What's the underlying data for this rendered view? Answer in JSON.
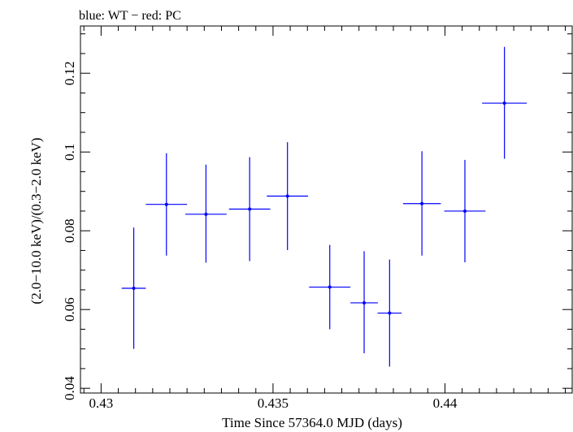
{
  "chart_data": {
    "type": "scatter",
    "title": "blue: WT − red: PC",
    "xlabel": "Time Since 57364.0 MJD (days)",
    "ylabel": "(2.0−10.0 keV)/(0.3−2.0 keV)",
    "xlim": [
      0.4294,
      0.4437
    ],
    "ylim": [
      0.0388,
      0.132
    ],
    "xticks": [
      0.43,
      0.435,
      0.44
    ],
    "xtick_labels": [
      "0.43",
      "0.435",
      "0.44"
    ],
    "yticks": [
      0.04,
      0.06,
      0.08,
      0.1,
      0.12
    ],
    "ytick_labels": [
      "0.04",
      "0.06",
      "0.08",
      "0.1",
      "0.12"
    ],
    "grid": false,
    "series": [
      {
        "color": "#0000ff",
        "points": [
          {
            "x": 0.43095,
            "y": 0.0654,
            "xerr": 0.00035,
            "ylo": 0.05,
            "yhi": 0.0808
          },
          {
            "x": 0.4319,
            "y": 0.0867,
            "xerr": 0.0006,
            "ylo": 0.0737,
            "yhi": 0.0997
          },
          {
            "x": 0.43305,
            "y": 0.0842,
            "xerr": 0.0006,
            "ylo": 0.0719,
            "yhi": 0.0968
          },
          {
            "x": 0.43432,
            "y": 0.0855,
            "xerr": 0.0006,
            "ylo": 0.0723,
            "yhi": 0.0987
          },
          {
            "x": 0.43542,
            "y": 0.0888,
            "xerr": 0.0006,
            "ylo": 0.0751,
            "yhi": 0.1025
          },
          {
            "x": 0.43665,
            "y": 0.0657,
            "xerr": 0.0006,
            "ylo": 0.055,
            "yhi": 0.0764
          },
          {
            "x": 0.43765,
            "y": 0.0617,
            "xerr": 0.0004,
            "ylo": 0.0489,
            "yhi": 0.0748
          },
          {
            "x": 0.43839,
            "y": 0.0591,
            "xerr": 0.00035,
            "ylo": 0.0455,
            "yhi": 0.0727
          },
          {
            "x": 0.43933,
            "y": 0.0869,
            "xerr": 0.00055,
            "ylo": 0.0737,
            "yhi": 0.1002
          },
          {
            "x": 0.44058,
            "y": 0.085,
            "xerr": 0.0006,
            "ylo": 0.072,
            "yhi": 0.098
          },
          {
            "x": 0.44173,
            "y": 0.1124,
            "xerr": 0.00065,
            "ylo": 0.0983,
            "yhi": 0.1267
          }
        ]
      }
    ]
  }
}
